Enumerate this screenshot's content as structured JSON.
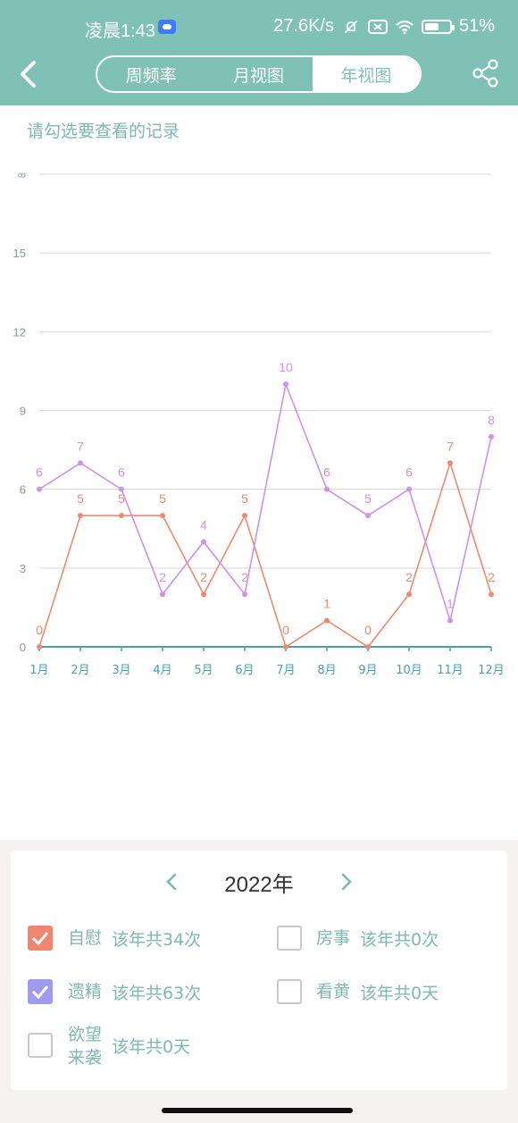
{
  "status_bar": {
    "time": "凌晨1:43",
    "net_speed": "27.6K/s",
    "battery": "51%"
  },
  "header": {
    "tabs": [
      {
        "label": "周频率",
        "active": false
      },
      {
        "label": "月视图",
        "active": false
      },
      {
        "label": "年视图",
        "active": true
      }
    ],
    "back_icon": "chevron-left-icon",
    "share_icon": "share-icon"
  },
  "prompt": "请勾选要查看的记录",
  "colors": {
    "header": "#7fc2b5",
    "teal_text": "#7fb8b1",
    "series_a": "#ee8a72",
    "series_b": "#cf92e8",
    "axis": "#45a3a8"
  },
  "chart_data": {
    "type": "line",
    "categories": [
      "1月",
      "2月",
      "3月",
      "4月",
      "5月",
      "6月",
      "7月",
      "8月",
      "9月",
      "10月",
      "11月",
      "12月"
    ],
    "y_ticks": [
      "0",
      "3",
      "6",
      "9",
      "12",
      "15",
      "∞"
    ],
    "ylim": [
      0,
      18
    ],
    "grid": true,
    "series": [
      {
        "values": [
          0,
          5,
          5,
          5,
          2,
          5,
          0,
          1,
          0,
          2,
          7,
          2
        ],
        "color": "#ee8a72"
      },
      {
        "values": [
          6,
          7,
          6,
          2,
          4,
          2,
          10,
          6,
          5,
          6,
          1,
          8
        ],
        "color": "#cf92e8"
      }
    ]
  },
  "year_selector": {
    "year": "2022年",
    "prev_icon": "chevron-left-icon",
    "next_icon": "chevron-right-icon"
  },
  "options": [
    {
      "label": "自慰",
      "count": "该年共34次",
      "checked": true,
      "color": "#f08670"
    },
    {
      "label": "房事",
      "count": "该年共0次",
      "checked": false
    },
    {
      "label": "遗精",
      "count": "该年共63次",
      "checked": true,
      "color": "#9f9cf0"
    },
    {
      "label": "看黄",
      "count": "该年共0天",
      "checked": false
    },
    {
      "label_line1": "欲望",
      "label_line2": "来袭",
      "count": "该年共0天",
      "checked": false
    }
  ]
}
